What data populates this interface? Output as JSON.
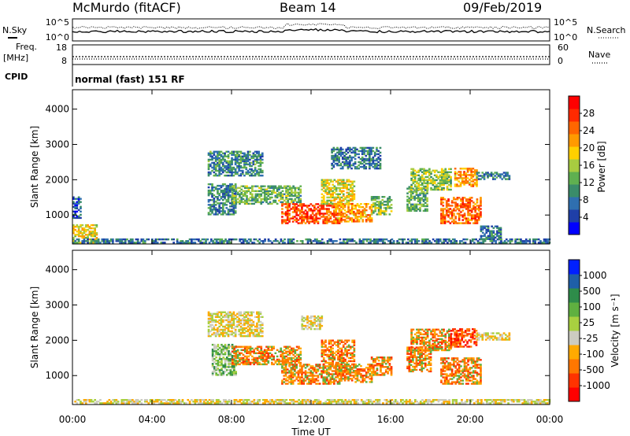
{
  "header": {
    "station": "McMurdo (fitACF)",
    "beam": "Beam 14",
    "date": "09/Feb/2019"
  },
  "top_panel": {
    "left_label": "N.Sky",
    "right_label": "N.Search",
    "left_ticks": [
      "10^5",
      "10^0"
    ],
    "right_ticks": [
      "10^5",
      "10^0"
    ]
  },
  "freq_panel": {
    "left_label_line1": "Freq.",
    "left_label_line2": "[MHz]",
    "left_ticks": [
      "18",
      "8"
    ],
    "right_label": "Nave",
    "right_ticks": [
      "60",
      "0"
    ]
  },
  "cpid_panel": {
    "label": "CPID",
    "text": "normal (fast) 151 RF"
  },
  "colors": {
    "power": [
      "#0000ff",
      "#1f3fa8",
      "#2f6fb0",
      "#3a8c6a",
      "#5fb050",
      "#a8cc40",
      "#ffd000",
      "#ff9a00",
      "#ff6600",
      "#ff2a00",
      "#ff0000"
    ],
    "velocity": [
      "#ff0000",
      "#ff3300",
      "#ff7700",
      "#ffaa00",
      "#ccccc0",
      "#a8d040",
      "#5fb040",
      "#2e8c4a",
      "#1f5fa8",
      "#0020ff"
    ]
  },
  "chart_data": [
    {
      "type": "heatmap",
      "panel": "power",
      "xlabel": "Time UT",
      "ylabel": "Slant Range [km]",
      "xlim": [
        0,
        24
      ],
      "ylim": [
        180,
        4550
      ],
      "x_ticks": [
        "00:00",
        "04:00",
        "08:00",
        "12:00",
        "16:00",
        "20:00",
        "00:00"
      ],
      "y_ticks": [
        1000,
        2000,
        3000,
        4000
      ],
      "colorbar": {
        "label": "Power [dB]",
        "ticks": [
          "4",
          "8",
          "12",
          "16",
          "20",
          "24",
          "28"
        ],
        "range": [
          0,
          32
        ]
      },
      "regions": [
        {
          "t": [
            0.0,
            1.2
          ],
          "r": [
            200,
            700
          ],
          "level": 18
        },
        {
          "t": [
            0.0,
            0.4
          ],
          "r": [
            900,
            1500
          ],
          "level": 6
        },
        {
          "t": [
            0.0,
            24.0
          ],
          "r": [
            200,
            320
          ],
          "level": 8
        },
        {
          "t": [
            6.8,
            9.5
          ],
          "r": [
            2100,
            2800
          ],
          "level": 10
        },
        {
          "t": [
            6.8,
            8.2
          ],
          "r": [
            1000,
            1900
          ],
          "level": 9
        },
        {
          "t": [
            8.0,
            11.5
          ],
          "r": [
            1300,
            1800
          ],
          "level": 13
        },
        {
          "t": [
            10.5,
            13.5
          ],
          "r": [
            750,
            1300
          ],
          "level": 26
        },
        {
          "t": [
            12.5,
            14.2
          ],
          "r": [
            1300,
            2000
          ],
          "level": 17
        },
        {
          "t": [
            13.2,
            15.0
          ],
          "r": [
            800,
            1300
          ],
          "level": 22
        },
        {
          "t": [
            15.0,
            16.0
          ],
          "r": [
            1000,
            1500
          ],
          "level": 14
        },
        {
          "t": [
            16.8,
            17.8
          ],
          "r": [
            1100,
            1800
          ],
          "level": 12
        },
        {
          "t": [
            17.0,
            19.0
          ],
          "r": [
            1700,
            2300
          ],
          "level": 15
        },
        {
          "t": [
            18.5,
            20.5
          ],
          "r": [
            750,
            1500
          ],
          "level": 25
        },
        {
          "t": [
            19.2,
            20.3
          ],
          "r": [
            1800,
            2300
          ],
          "level": 22
        },
        {
          "t": [
            13.0,
            15.5
          ],
          "r": [
            2300,
            2900
          ],
          "level": 8
        },
        {
          "t": [
            20.3,
            22.0
          ],
          "r": [
            2000,
            2200
          ],
          "level": 9
        },
        {
          "t": [
            20.5,
            21.5
          ],
          "r": [
            300,
            700
          ],
          "level": 8
        }
      ]
    },
    {
      "type": "heatmap",
      "panel": "velocity",
      "xlabel": "Time UT",
      "ylabel": "Slant Range [km]",
      "xlim": [
        0,
        24
      ],
      "ylim": [
        180,
        4550
      ],
      "x_ticks": [
        "00:00",
        "04:00",
        "08:00",
        "12:00",
        "16:00",
        "20:00",
        "00:00"
      ],
      "y_ticks": [
        1000,
        2000,
        3000,
        4000
      ],
      "colorbar": {
        "label": "Velocity [m s⁻¹]",
        "ticks": [
          "1000",
          "500",
          "100",
          "25",
          "-25",
          "-100",
          "-500",
          "-1000"
        ]
      },
      "regions": [
        {
          "t": [
            0.0,
            24.0
          ],
          "r": [
            200,
            300
          ],
          "class": "low"
        },
        {
          "t": [
            6.8,
            9.5
          ],
          "r": [
            2100,
            2800
          ],
          "class": "low"
        },
        {
          "t": [
            7.0,
            8.2
          ],
          "r": [
            1000,
            1900
          ],
          "class": "pos"
        },
        {
          "t": [
            8.0,
            11.5
          ],
          "r": [
            1300,
            1800
          ],
          "class": "neg"
        },
        {
          "t": [
            10.5,
            13.5
          ],
          "r": [
            750,
            1300
          ],
          "class": "neg"
        },
        {
          "t": [
            12.5,
            14.2
          ],
          "r": [
            1300,
            2000
          ],
          "class": "neg"
        },
        {
          "t": [
            13.2,
            15.0
          ],
          "r": [
            800,
            1300
          ],
          "class": "neg"
        },
        {
          "t": [
            15.0,
            16.0
          ],
          "r": [
            1000,
            1500
          ],
          "class": "neg"
        },
        {
          "t": [
            16.8,
            18.0
          ],
          "r": [
            1100,
            1800
          ],
          "class": "neg"
        },
        {
          "t": [
            17.0,
            19.0
          ],
          "r": [
            1700,
            2300
          ],
          "class": "neg"
        },
        {
          "t": [
            18.5,
            20.5
          ],
          "r": [
            750,
            1500
          ],
          "class": "neg"
        },
        {
          "t": [
            19.0,
            20.3
          ],
          "r": [
            1800,
            2300
          ],
          "class": "strongneg"
        },
        {
          "t": [
            20.3,
            22.0
          ],
          "r": [
            2000,
            2200
          ],
          "class": "low"
        },
        {
          "t": [
            11.5,
            12.5
          ],
          "r": [
            2300,
            2700
          ],
          "class": "low"
        }
      ]
    }
  ]
}
